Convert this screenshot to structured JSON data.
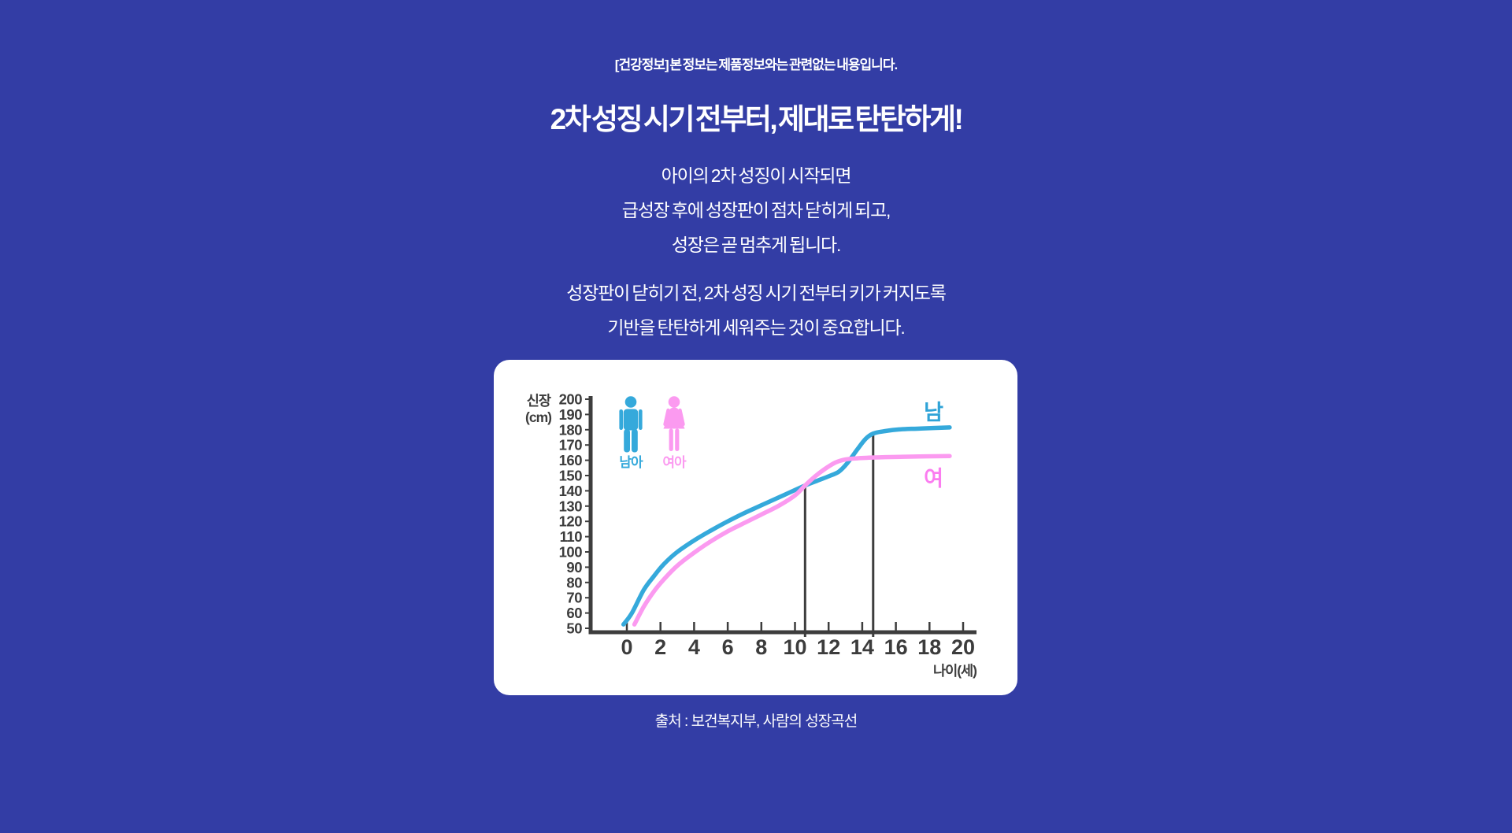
{
  "page": {
    "background": "#333da5"
  },
  "notice": {
    "text": "[건강정보] 본 정보는 제품정보와는 관련없는 내용입니다."
  },
  "title": {
    "text": "2차 성징 시기 전부터, 제대로 탄탄하게!"
  },
  "paragraphs": [
    {
      "lines": [
        "아이의 2차 성징이 시작되면",
        "급성장 후에 성장판이 점차 닫히게 되고,",
        "성장은 곧 멈추게 됩니다."
      ]
    },
    {
      "lines": [
        "성장판이 닫히기 전, 2차 성징 시기 전부터 키가 커지도록",
        "기반을 탄탄하게 세워주는 것이 중요합니다."
      ]
    }
  ],
  "source": {
    "text": "출처 : 보건복지부, 사람의 성장곡선"
  },
  "chart_data": {
    "type": "line",
    "title": "",
    "xlabel": "나이(세)",
    "ylabel": "신장 (cm)",
    "ylabel_lines": [
      "신장",
      "(cm)"
    ],
    "xlim": [
      -0.5,
      21
    ],
    "ylim": [
      50,
      200
    ],
    "grid": false,
    "x_ticks": [
      0,
      2,
      4,
      6,
      8,
      10,
      12,
      14,
      16,
      18,
      20
    ],
    "y_ticks": [
      200,
      190,
      180,
      170,
      160,
      150,
      140,
      130,
      120,
      110,
      100,
      90,
      80,
      70,
      60,
      50
    ],
    "colors": {
      "axis": "#3d3d3d",
      "male": "#35a9db",
      "female": "#fb9af0"
    },
    "legend_position": "top-left-inside",
    "legend": [
      {
        "icon": "male-pictogram",
        "label": "남아",
        "color": "#35a9db"
      },
      {
        "icon": "female-pictogram",
        "label": "여아",
        "color": "#fb9af0"
      }
    ],
    "vertical_lines": [
      {
        "age": 10.6,
        "top": 143.5
      },
      {
        "age": 14.65,
        "top": 177.5
      }
    ],
    "series": [
      {
        "name": "남",
        "color": "#35a9db",
        "label_color": "#2fa3d7",
        "points": [
          [
            -0.2,
            52.5
          ],
          [
            0.3,
            60
          ],
          [
            1,
            75
          ],
          [
            1.6,
            84
          ],
          [
            2.2,
            92
          ],
          [
            3,
            100
          ],
          [
            4,
            107.5
          ],
          [
            5,
            114
          ],
          [
            6,
            120
          ],
          [
            7,
            125.5
          ],
          [
            8,
            130.5
          ],
          [
            9,
            135.5
          ],
          [
            10,
            140.5
          ],
          [
            10.6,
            143.5
          ],
          [
            11.3,
            146.5
          ],
          [
            12,
            149.5
          ],
          [
            12.6,
            152.5
          ],
          [
            13.1,
            158
          ],
          [
            13.7,
            167
          ],
          [
            14.2,
            174
          ],
          [
            14.65,
            177.5
          ],
          [
            15.3,
            179
          ],
          [
            16.2,
            180.2
          ],
          [
            17.5,
            180.8
          ],
          [
            19.2,
            181.5
          ]
        ]
      },
      {
        "name": "여",
        "color": "#fb9af0",
        "label_color": "#fb7df0",
        "points": [
          [
            0.45,
            52.5
          ],
          [
            1,
            64
          ],
          [
            1.6,
            74
          ],
          [
            2.2,
            82
          ],
          [
            3,
            91
          ],
          [
            4,
            99.5
          ],
          [
            5,
            107
          ],
          [
            6,
            113.5
          ],
          [
            7,
            119
          ],
          [
            8,
            124.5
          ],
          [
            9,
            130
          ],
          [
            10,
            137
          ],
          [
            10.6,
            143.5
          ],
          [
            11.2,
            149.5
          ],
          [
            11.8,
            154.5
          ],
          [
            12.4,
            158.5
          ],
          [
            13,
            160.5
          ],
          [
            13.7,
            161.3
          ],
          [
            15,
            161.9
          ],
          [
            16.5,
            162.3
          ],
          [
            19.2,
            162.8
          ]
        ]
      }
    ]
  }
}
